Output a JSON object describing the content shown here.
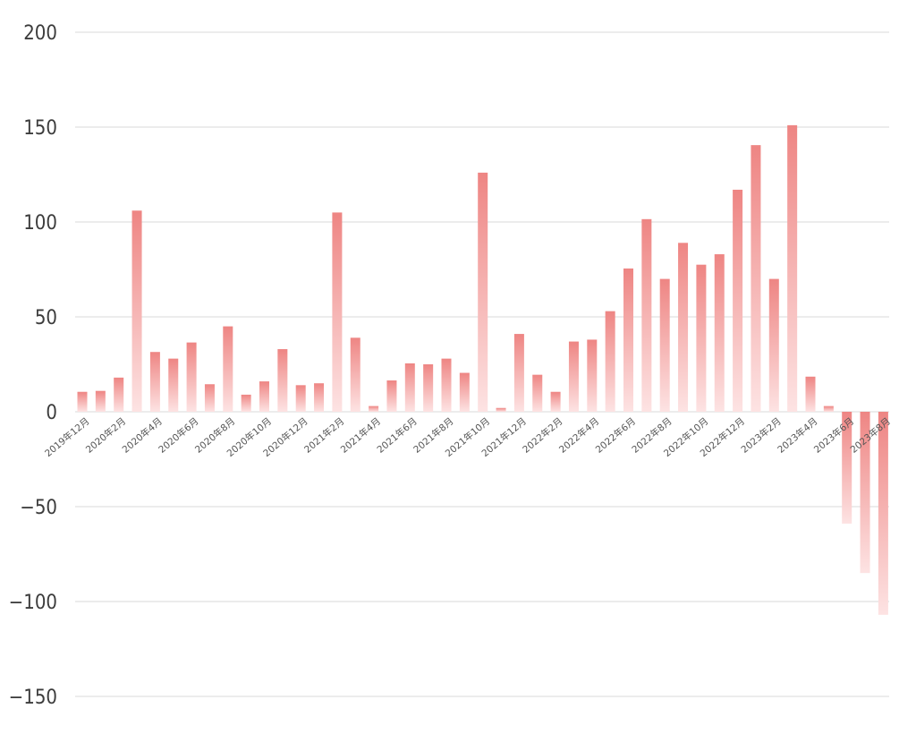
{
  "chart_data": {
    "type": "bar",
    "title": "",
    "xlabel": "",
    "ylabel": "",
    "ylim": [
      -150,
      200
    ],
    "yticks": [
      200,
      150,
      100,
      50,
      0,
      -50,
      -100,
      -150
    ],
    "grid": true,
    "legend": "none",
    "bar_color_top": "#ee8583",
    "bar_color_bottom": "#fde3e3",
    "categories": [
      "2019年12月",
      "2020年1月",
      "2020年2月",
      "2020年3月",
      "2020年4月",
      "2020年5月",
      "2020年6月",
      "2020年7月",
      "2020年8月",
      "2020年9月",
      "2020年10月",
      "2020年11月",
      "2020年12月",
      "2021年1月",
      "2021年2月",
      "2021年3月",
      "2021年4月",
      "2021年5月",
      "2021年6月",
      "2021年7月",
      "2021年8月",
      "2021年9月",
      "2021年10月",
      "2021年11月",
      "2021年12月",
      "2022年1月",
      "2022年2月",
      "2022年3月",
      "2022年4月",
      "2022年5月",
      "2022年6月",
      "2022年7月",
      "2022年8月",
      "2022年9月",
      "2022年10月",
      "2022年11月",
      "2022年12月",
      "2023年1月",
      "2023年2月",
      "2023年3月",
      "2023年4月",
      "2023年5月",
      "2023年6月",
      "2023年7月",
      "2023年8月"
    ],
    "category_labels_shown": [
      "2019年12月",
      "",
      "2020年2月",
      "",
      "2020年4月",
      "",
      "2020年6月",
      "",
      "2020年8月",
      "",
      "2020年10月",
      "",
      "2020年12月",
      "",
      "2021年2月",
      "",
      "2021年4月",
      "",
      "2021年6月",
      "",
      "2021年8月",
      "",
      "2021年10月",
      "",
      "2021年12月",
      "",
      "2022年2月",
      "",
      "2022年4月",
      "",
      "2022年6月",
      "",
      "2022年8月",
      "",
      "2022年10月",
      "",
      "2022年12月",
      "",
      "2023年2月",
      "",
      "2023年4月",
      "",
      "2023年6月",
      "",
      "2023年8月"
    ],
    "values": [
      10.5,
      11,
      18,
      106,
      31.5,
      28,
      36.5,
      14.5,
      45,
      9,
      16,
      33,
      14,
      15,
      105,
      39,
      3,
      16.5,
      25.5,
      25,
      28,
      20.5,
      126,
      2,
      41,
      19.5,
      10.5,
      37,
      38,
      53,
      75.5,
      101.5,
      70,
      89,
      77.5,
      83,
      117,
      140.5,
      70,
      151,
      18.5,
      3,
      -59,
      -85,
      -107
    ]
  }
}
